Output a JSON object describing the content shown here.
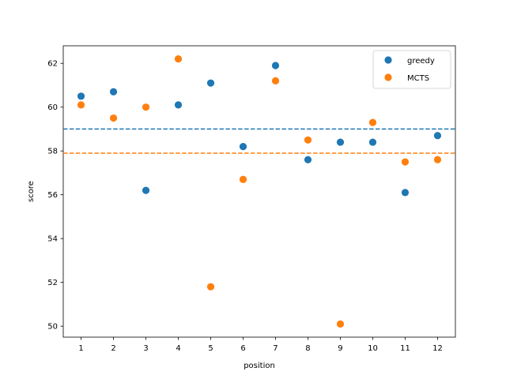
{
  "chart_data": {
    "type": "scatter",
    "xlabel": "position",
    "ylabel": "score",
    "xticks": [
      1,
      2,
      3,
      4,
      5,
      6,
      7,
      8,
      9,
      10,
      11,
      12
    ],
    "yticks": [
      50,
      52,
      54,
      56,
      58,
      60,
      62
    ],
    "xlim": [
      0.45,
      12.55
    ],
    "ylim": [
      49.5,
      62.8
    ],
    "grid": false,
    "legend_position": "top-right",
    "series": [
      {
        "name": "greedy",
        "color": "#1f77b4",
        "x": [
          1,
          2,
          3,
          4,
          5,
          6,
          7,
          8,
          9,
          10,
          11,
          12
        ],
        "y": [
          60.5,
          60.7,
          56.2,
          60.1,
          61.1,
          58.2,
          61.9,
          57.6,
          58.4,
          58.4,
          56.1,
          58.7
        ],
        "mean_line": 59.0
      },
      {
        "name": "MCTS",
        "color": "#ff7f0e",
        "x": [
          1,
          2,
          3,
          4,
          5,
          6,
          7,
          8,
          9,
          10,
          11,
          12
        ],
        "y": [
          60.1,
          59.5,
          60.0,
          62.2,
          51.8,
          56.7,
          61.2,
          58.5,
          50.1,
          59.3,
          57.5,
          57.6
        ],
        "mean_line": 57.9
      }
    ]
  }
}
